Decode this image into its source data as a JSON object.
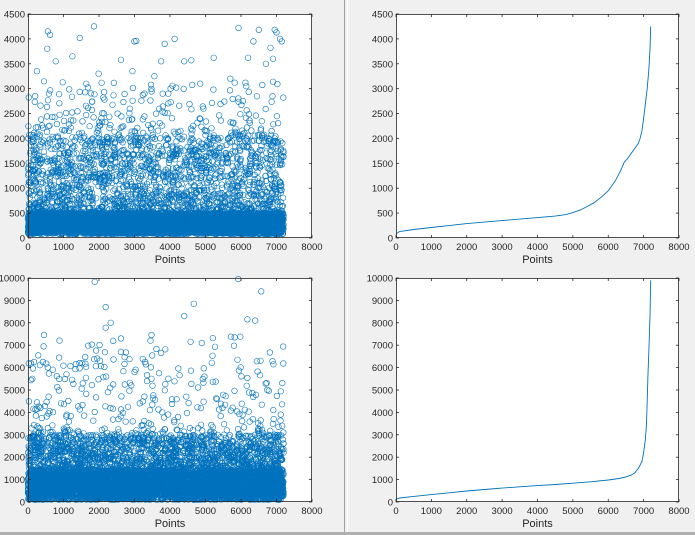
{
  "chart_data": [
    {
      "id": "chart-scatter-top",
      "type": "scatter",
      "xlabel": "Points",
      "ylabel": "",
      "xlim": [
        0,
        8000
      ],
      "ylim": [
        0,
        4500
      ],
      "xticks": [
        0,
        1000,
        2000,
        3000,
        4000,
        5000,
        6000,
        7000,
        8000
      ],
      "yticks": [
        0,
        500,
        1000,
        1500,
        2000,
        2500,
        3000,
        3500,
        4000,
        4500
      ],
      "marker": "circle-open",
      "color": "#0072bd",
      "grid": false,
      "n_points": 7200,
      "distribution": {
        "dense_range": [
          80,
          500
        ],
        "mid_range": [
          500,
          2000
        ],
        "max": 4200
      },
      "points": [
        [
          560,
          4150
        ],
        [
          620,
          4080
        ],
        [
          1460,
          4020
        ],
        [
          1860,
          4250
        ],
        [
          3000,
          3950
        ],
        [
          3050,
          3960
        ],
        [
          3850,
          3900
        ],
        [
          4130,
          4000
        ],
        [
          5930,
          4220
        ],
        [
          6500,
          4180
        ],
        [
          6950,
          4180
        ],
        [
          7000,
          4130
        ],
        [
          7100,
          4000
        ],
        [
          7150,
          3950
        ],
        [
          6350,
          3950
        ],
        [
          6830,
          3820
        ],
        [
          540,
          3800
        ],
        [
          1250,
          3650
        ],
        [
          780,
          3550
        ],
        [
          2620,
          3580
        ],
        [
          3750,
          3550
        ],
        [
          4400,
          3550
        ],
        [
          4600,
          3570
        ],
        [
          5230,
          3620
        ],
        [
          6200,
          3620
        ],
        [
          6900,
          3600
        ],
        [
          6700,
          3500
        ],
        [
          250,
          3350
        ],
        [
          1990,
          3300
        ],
        [
          2940,
          3350
        ],
        [
          3560,
          3250
        ],
        [
          5700,
          3200
        ],
        [
          4850,
          3100
        ],
        [
          6150,
          3050
        ]
      ]
    },
    {
      "id": "chart-line-top",
      "type": "line",
      "xlabel": "Points",
      "ylabel": "",
      "xlim": [
        0,
        8000
      ],
      "ylim": [
        0,
        4500
      ],
      "xticks": [
        0,
        1000,
        2000,
        3000,
        4000,
        5000,
        6000,
        7000,
        8000
      ],
      "yticks": [
        0,
        500,
        1000,
        1500,
        2000,
        2500,
        3000,
        3500,
        4000,
        4500
      ],
      "color": "#0072bd",
      "grid": false,
      "x": [
        0,
        100,
        500,
        1000,
        1500,
        2000,
        2500,
        3000,
        3500,
        4000,
        4500,
        4800,
        5000,
        5200,
        5400,
        5600,
        5800,
        6000,
        6200,
        6350,
        6450,
        6550,
        6650,
        6750,
        6850,
        6900,
        6950,
        7000,
        7050,
        7100,
        7150,
        7180,
        7200
      ],
      "y": [
        80,
        130,
        170,
        210,
        250,
        290,
        320,
        350,
        380,
        410,
        440,
        470,
        510,
        560,
        630,
        710,
        820,
        950,
        1150,
        1350,
        1520,
        1600,
        1700,
        1800,
        1900,
        2000,
        2150,
        2400,
        2700,
        3000,
        3400,
        3800,
        4250
      ]
    },
    {
      "id": "chart-scatter-bottom",
      "type": "scatter",
      "xlabel": "Points",
      "ylabel": "",
      "xlim": [
        0,
        8000
      ],
      "ylim": [
        0,
        10000
      ],
      "xticks": [
        0,
        1000,
        2000,
        3000,
        4000,
        5000,
        6000,
        7000,
        8000
      ],
      "yticks": [
        0,
        1000,
        2000,
        3000,
        4000,
        5000,
        6000,
        7000,
        8000,
        9000,
        10000
      ],
      "marker": "circle-open",
      "color": "#0072bd",
      "grid": false,
      "n_points": 7200,
      "distribution": {
        "dense_range": [
          100,
          1400
        ],
        "mid_range": [
          1400,
          3000
        ],
        "max": 9950
      },
      "points": [
        [
          1880,
          9830
        ],
        [
          5920,
          9950
        ],
        [
          6570,
          9400
        ],
        [
          4670,
          8850
        ],
        [
          2190,
          8700
        ],
        [
          4400,
          8300
        ],
        [
          6180,
          8150
        ],
        [
          6400,
          8100
        ],
        [
          2190,
          7780
        ],
        [
          2330,
          8000
        ],
        [
          2620,
          7300
        ],
        [
          3450,
          7200
        ],
        [
          4580,
          7150
        ],
        [
          170,
          6250
        ],
        [
          420,
          6250
        ],
        [
          1450,
          6200
        ],
        [
          1530,
          6200
        ],
        [
          1950,
          6400
        ],
        [
          3300,
          6250
        ],
        [
          3750,
          6650
        ],
        [
          5900,
          6350
        ],
        [
          120,
          5500
        ],
        [
          810,
          5620
        ],
        [
          2120,
          5570
        ],
        [
          2200,
          5600
        ],
        [
          3000,
          5800
        ],
        [
          3480,
          5500
        ],
        [
          4970,
          5600
        ],
        [
          6740,
          5000
        ],
        [
          580,
          4700
        ],
        [
          350,
          4200
        ],
        [
          2250,
          4900
        ],
        [
          2820,
          4250
        ],
        [
          3150,
          4400
        ],
        [
          3500,
          4350
        ],
        [
          4460,
          4700
        ],
        [
          5320,
          4600
        ],
        [
          5480,
          4200
        ],
        [
          7120,
          3900
        ],
        [
          7160,
          3400
        ],
        [
          180,
          3000
        ],
        [
          300,
          3300
        ],
        [
          560,
          3300
        ],
        [
          2550,
          3700
        ],
        [
          2950,
          3600
        ],
        [
          3850,
          3250
        ],
        [
          4300,
          3400
        ],
        [
          4800,
          3300
        ],
        [
          5600,
          3200
        ],
        [
          5950,
          3050
        ],
        [
          6920,
          3700
        ]
      ]
    },
    {
      "id": "chart-line-bottom",
      "type": "line",
      "xlabel": "Points",
      "ylabel": "",
      "xlim": [
        0,
        8000
      ],
      "ylim": [
        0,
        10000
      ],
      "xticks": [
        0,
        1000,
        2000,
        3000,
        4000,
        5000,
        6000,
        7000,
        8000
      ],
      "yticks": [
        0,
        1000,
        2000,
        3000,
        4000,
        5000,
        6000,
        7000,
        8000,
        9000,
        10000
      ],
      "color": "#0072bd",
      "grid": false,
      "x": [
        0,
        100,
        500,
        1000,
        1500,
        2000,
        2500,
        3000,
        3500,
        4000,
        4500,
        5000,
        5500,
        6000,
        6300,
        6500,
        6650,
        6750,
        6850,
        6950,
        7000,
        7050,
        7080,
        7100,
        7120,
        7150,
        7180,
        7200
      ],
      "y": [
        120,
        180,
        250,
        330,
        410,
        490,
        560,
        620,
        680,
        730,
        780,
        840,
        900,
        980,
        1050,
        1120,
        1200,
        1300,
        1500,
        1800,
        2200,
        2800,
        3500,
        4500,
        5600,
        6800,
        8300,
        9900
      ]
    }
  ]
}
